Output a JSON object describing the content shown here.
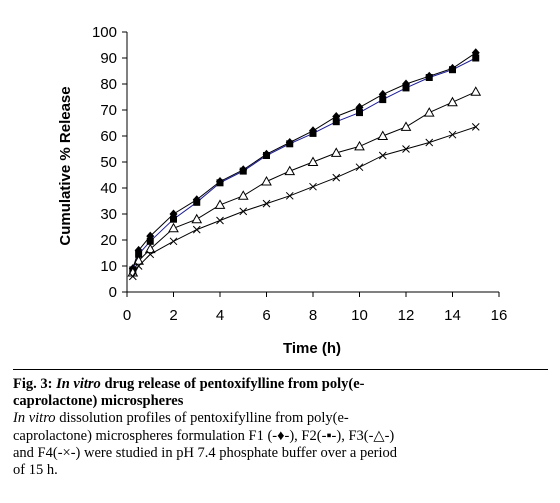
{
  "chart_data": {
    "type": "line",
    "xlabel": "Time (h)",
    "ylabel": "Cumulative % Release",
    "xlim": [
      0,
      16
    ],
    "ylim": [
      0,
      100
    ],
    "xticks": [
      0,
      2,
      4,
      6,
      8,
      10,
      12,
      14,
      16
    ],
    "yticks": [
      0,
      10,
      20,
      30,
      40,
      50,
      60,
      70,
      80,
      90,
      100
    ],
    "grid": false,
    "series": [
      {
        "name": "F1",
        "marker": "diamond",
        "x": [
          0.25,
          0.5,
          1,
          2,
          3,
          4,
          5,
          6,
          7,
          8,
          9,
          10,
          11,
          12,
          13,
          14,
          15
        ],
        "values": [
          9,
          16,
          21.5,
          30,
          35.5,
          42.5,
          47,
          53,
          57.5,
          62,
          67.5,
          71,
          76,
          80,
          83,
          86,
          92
        ]
      },
      {
        "name": "F2",
        "marker": "square",
        "x": [
          0.25,
          0.5,
          1,
          2,
          3,
          4,
          5,
          6,
          7,
          8,
          9,
          10,
          11,
          12,
          13,
          14,
          15
        ],
        "values": [
          8.5,
          14.5,
          19.5,
          28,
          34.5,
          42,
          46.5,
          52.5,
          57,
          61,
          65.5,
          69,
          74,
          78.5,
          82.5,
          85.5,
          90
        ]
      },
      {
        "name": "F3",
        "marker": "triangle",
        "x": [
          0.25,
          0.5,
          1,
          2,
          3,
          4,
          5,
          6,
          7,
          8,
          9,
          10,
          11,
          12,
          13,
          14,
          15
        ],
        "values": [
          7.5,
          12,
          16.5,
          24.5,
          28,
          33.5,
          37,
          42.5,
          46.5,
          50,
          53.5,
          56,
          60,
          63.5,
          69,
          73,
          77
        ]
      },
      {
        "name": "F4",
        "marker": "cross",
        "x": [
          0.25,
          0.5,
          1,
          2,
          3,
          4,
          5,
          6,
          7,
          8,
          9,
          10,
          11,
          12,
          13,
          14,
          15
        ],
        "values": [
          6,
          10,
          14.5,
          19.5,
          24,
          27.5,
          31,
          34,
          37,
          40.5,
          44,
          48,
          52.5,
          55,
          57.5,
          60.5,
          63.5
        ]
      }
    ]
  },
  "caption": {
    "line1_prefix": "Fig. 3: ",
    "line1_italic": "In vitro",
    "line1_rest": " drug release of pentoxifylline from poly(e-",
    "line2": "caprolactone) microspheres",
    "line3_italic": "In vitro",
    "line3_rest": " dissolution profiles of pentoxifylline from poly(e-",
    "line4": "caprolactone) microspheres formulation F1 (-♦-), F2(-▪-), F3(-△-)",
    "line5": "and F4(-×-) were studied in pH 7.4 phosphate buffer over a period",
    "line6": "of 15 h."
  }
}
